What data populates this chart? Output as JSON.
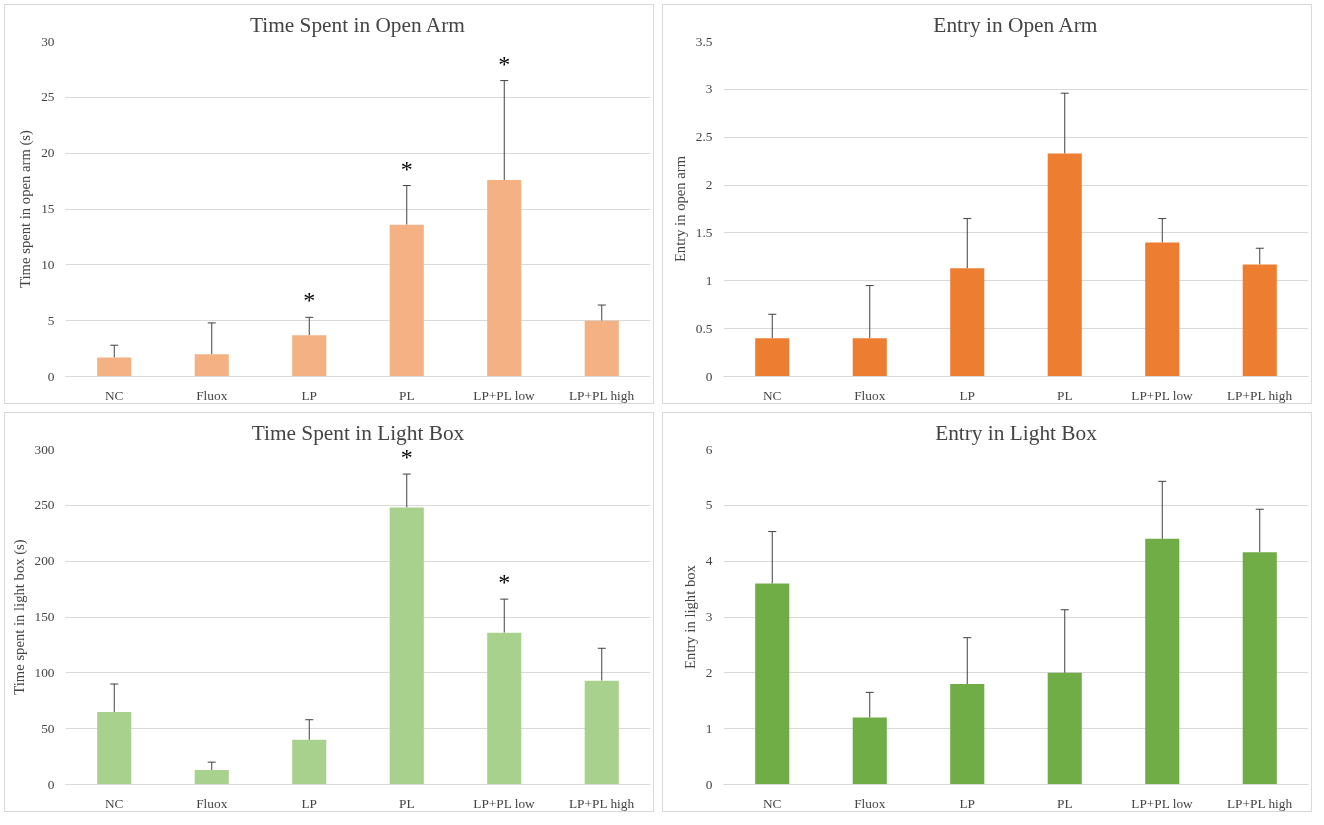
{
  "chart_data": [
    {
      "type": "bar",
      "title": "Time Spent in Open Arm",
      "ylabel": "Time spent in open arm (s)",
      "categories": [
        "NC",
        "Fluox",
        "LP",
        "PL",
        "LP+PL low",
        "LP+PL high"
      ],
      "series": [
        {
          "color": "#f4b183",
          "values": [
            1.7,
            2.0,
            3.7,
            13.6,
            17.6,
            5.0
          ],
          "errors": [
            [
              1.7,
              2.8
            ],
            [
              2.0,
              4.8
            ],
            [
              3.7,
              5.3
            ],
            [
              13.6,
              17.1
            ],
            [
              17.6,
              26.5
            ],
            [
              5.0,
              6.4
            ]
          ]
        }
      ],
      "ylim": [
        0,
        30
      ],
      "yticks": [
        0,
        5,
        10,
        15,
        20,
        25,
        30
      ],
      "grid": "y",
      "annotations": [
        {
          "text": "*",
          "x": "LP",
          "y": 5.3
        },
        {
          "text": "*",
          "x": "PL",
          "y": 17.1
        },
        {
          "text": "*",
          "x": "LP+PL low",
          "y": 26.5
        }
      ]
    },
    {
      "type": "bar",
      "title": "Entry in Open Arm",
      "ylabel": "Entry in open arm",
      "categories": [
        "NC",
        "Fluox",
        "LP",
        "PL",
        "LP+PL low",
        "LP+PL high"
      ],
      "series": [
        {
          "color": "#ed7d31",
          "values": [
            0.4,
            0.4,
            1.13,
            2.33,
            1.4,
            1.17
          ],
          "errors": [
            [
              0.4,
              0.65
            ],
            [
              0.4,
              0.95
            ],
            [
              1.13,
              1.65
            ],
            [
              2.33,
              2.96
            ],
            [
              1.4,
              1.65
            ],
            [
              1.17,
              1.34
            ]
          ]
        }
      ],
      "ylim": [
        0,
        3.5
      ],
      "yticks": [
        0,
        0.5,
        1,
        1.5,
        2,
        2.5,
        3,
        3.5
      ],
      "grid": "y"
    },
    {
      "type": "bar",
      "title": "Time Spent in Light Box",
      "ylabel": "Time spent in light box (s)",
      "categories": [
        "NC",
        "Fluox",
        "LP",
        "PL",
        "LP+PL low",
        "LP+PL high"
      ],
      "series": [
        {
          "color": "#a9d18e",
          "values": [
            65,
            13,
            40,
            248,
            136,
            93
          ],
          "errors": [
            [
              65,
              90
            ],
            [
              13,
              20
            ],
            [
              40,
              58
            ],
            [
              248,
              278
            ],
            [
              136,
              166
            ],
            [
              93,
              122
            ]
          ]
        }
      ],
      "ylim": [
        0,
        300
      ],
      "yticks": [
        0,
        50,
        100,
        150,
        200,
        250,
        300
      ],
      "grid": "y",
      "annotations": [
        {
          "text": "*",
          "x": "PL",
          "y": 278
        },
        {
          "text": "*",
          "x": "LP+PL low",
          "y": 166
        }
      ]
    },
    {
      "type": "bar",
      "title": "Entry in Light Box",
      "ylabel": "Entry in light box",
      "categories": [
        "NC",
        "Fluox",
        "LP",
        "PL",
        "LP+PL low",
        "LP+PL high"
      ],
      "series": [
        {
          "color": "#70ad47",
          "values": [
            3.6,
            1.2,
            1.8,
            2.0,
            4.4,
            4.16
          ],
          "errors": [
            [
              3.6,
              4.53
            ],
            [
              1.2,
              1.65
            ],
            [
              1.8,
              2.63
            ],
            [
              2.0,
              3.13
            ],
            [
              4.4,
              5.43
            ],
            [
              4.16,
              4.93
            ]
          ]
        }
      ],
      "ylim": [
        0,
        6
      ],
      "yticks": [
        0,
        1,
        2,
        3,
        4,
        5,
        6
      ],
      "grid": "y"
    }
  ]
}
